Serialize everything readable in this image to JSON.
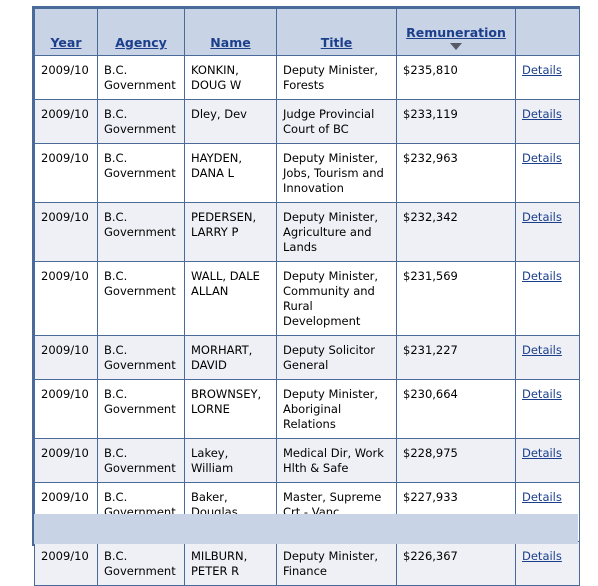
{
  "table": {
    "headers": {
      "year": "Year",
      "agency": "Agency",
      "name": "Name",
      "title": "Title",
      "remuneration": "Remuneration"
    },
    "sort_icon": "sort-descending-icon",
    "rows": [
      {
        "year": "2009/10",
        "agency": "B.C. Government",
        "name": "KONKIN, DOUG W",
        "title": "Deputy Minister, Forests",
        "remuneration": "$235,810",
        "details": "Details"
      },
      {
        "year": "2009/10",
        "agency": "B.C. Government",
        "name": "Dley, Dev",
        "title": "Judge Provincial Court of BC",
        "remuneration": "$233,119",
        "details": "Details"
      },
      {
        "year": "2009/10",
        "agency": "B.C. Government",
        "name": "HAYDEN, DANA L",
        "title": "Deputy Minister, Jobs, Tourism and Innovation",
        "remuneration": "$232,963",
        "details": "Details"
      },
      {
        "year": "2009/10",
        "agency": "B.C. Government",
        "name": "PEDERSEN, LARRY P",
        "title": "Deputy Minister, Agriculture and Lands",
        "remuneration": "$232,342",
        "details": "Details"
      },
      {
        "year": "2009/10",
        "agency": "B.C. Government",
        "name": "WALL, DALE ALLAN",
        "title": "Deputy Minister, Community and Rural Development",
        "remuneration": "$231,569",
        "details": "Details"
      },
      {
        "year": "2009/10",
        "agency": "B.C. Government",
        "name": "MORHART, DAVID",
        "title": "Deputy Solicitor General",
        "remuneration": "$231,227",
        "details": "Details"
      },
      {
        "year": "2009/10",
        "agency": "B.C. Government",
        "name": "BROWNSEY, LORNE",
        "title": "Deputy Minister, Aboriginal Relations",
        "remuneration": "$230,664",
        "details": "Details"
      },
      {
        "year": "2009/10",
        "agency": "B.C. Government",
        "name": "Lakey, William",
        "title": "Medical Dir, Work Hlth & Safe",
        "remuneration": "$228,975",
        "details": "Details"
      },
      {
        "year": "2009/10",
        "agency": "B.C. Government",
        "name": "Baker, Douglas Charles",
        "title": "Master, Supreme Crt - Vanc.",
        "remuneration": "$227,933",
        "details": "Details"
      },
      {
        "year": "2009/10",
        "agency": "B.C. Government",
        "name": "MILBURN, PETER R",
        "title": "Deputy Minister, Finance",
        "remuneration": "$226,367",
        "details": "Details"
      }
    ]
  }
}
